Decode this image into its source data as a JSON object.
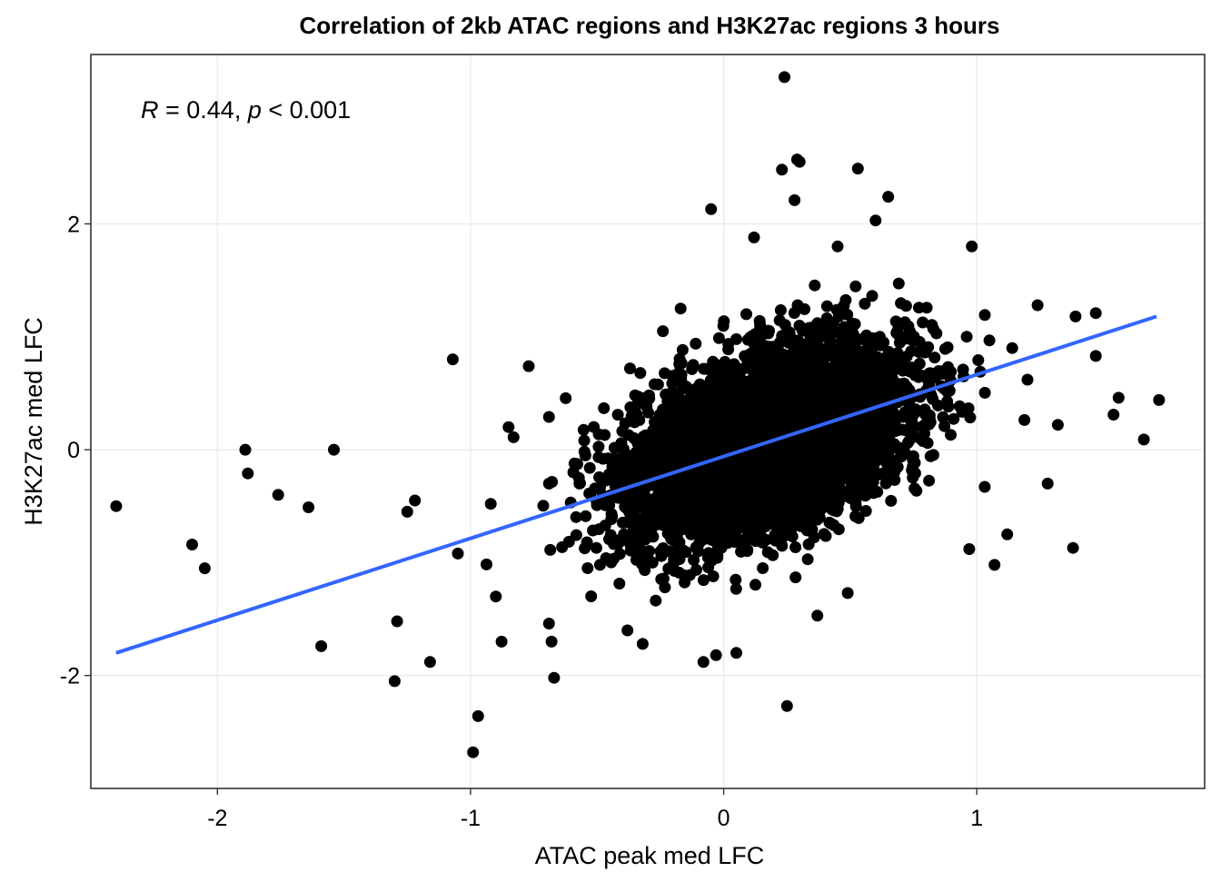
{
  "chart_data": {
    "type": "scatter",
    "title": "Correlation of 2kb ATAC regions and H3K27ac regions 3 hours",
    "xlabel": "ATAC peak med LFC",
    "ylabel": "H3K27ac med LFC",
    "xlim": [
      -2.5,
      1.9
    ],
    "ylim": [
      -3.0,
      3.5
    ],
    "x_ticks": [
      -2,
      -1,
      0,
      1
    ],
    "y_ticks": [
      -2,
      0,
      2
    ],
    "x_tick_labels": [
      "-2",
      "-1",
      "0",
      "1"
    ],
    "y_tick_labels": [
      "-2",
      "0",
      "2"
    ],
    "grid": true,
    "annotation": {
      "r_symbol": "R",
      "r_text": " = 0.44, ",
      "p_symbol": "p",
      "p_text": " < 0.001"
    },
    "point_color": "#000000",
    "fit_line": {
      "color": "#3366FF",
      "x": [
        -2.4,
        1.71
      ],
      "y": [
        -1.8,
        1.18
      ]
    },
    "outlier_points": [
      [
        -2.4,
        -0.5
      ],
      [
        -2.1,
        -0.84
      ],
      [
        -2.05,
        -1.05
      ],
      [
        -1.89,
        0.0
      ],
      [
        -1.88,
        -0.21
      ],
      [
        -1.76,
        -0.4
      ],
      [
        -1.64,
        -0.51
      ],
      [
        -1.59,
        -1.74
      ],
      [
        -1.54,
        0.0
      ],
      [
        -1.3,
        -2.05
      ],
      [
        -1.29,
        -1.52
      ],
      [
        -1.25,
        -0.55
      ],
      [
        -1.22,
        -0.45
      ],
      [
        -1.07,
        0.8
      ],
      [
        -1.16,
        -1.88
      ],
      [
        -0.99,
        -2.68
      ],
      [
        -0.97,
        -2.36
      ],
      [
        -0.85,
        0.2
      ],
      [
        -0.83,
        0.11
      ],
      [
        -0.77,
        0.74
      ],
      [
        -0.69,
        -0.3
      ],
      [
        -0.67,
        -2.02
      ],
      [
        -0.68,
        -1.7
      ],
      [
        -0.69,
        -1.54
      ],
      [
        -0.69,
        0.29
      ],
      [
        0.24,
        3.3
      ],
      [
        0.23,
        2.48
      ],
      [
        0.29,
        2.57
      ],
      [
        0.3,
        2.55
      ],
      [
        0.53,
        2.49
      ],
      [
        0.65,
        2.24
      ],
      [
        -0.05,
        2.13
      ],
      [
        0.28,
        2.21
      ],
      [
        0.6,
        2.03
      ],
      [
        0.98,
        1.8
      ],
      [
        1.24,
        1.28
      ],
      [
        1.39,
        1.18
      ],
      [
        1.47,
        1.21
      ],
      [
        1.47,
        0.83
      ],
      [
        1.56,
        0.46
      ],
      [
        1.54,
        0.31
      ],
      [
        1.66,
        0.09
      ],
      [
        1.72,
        0.44
      ],
      [
        1.38,
        -0.87
      ],
      [
        0.25,
        -2.27
      ],
      [
        0.37,
        -1.47
      ],
      [
        0.49,
        -1.27
      ],
      [
        -0.08,
        -1.88
      ],
      [
        -0.03,
        -1.82
      ],
      [
        0.05,
        -1.8
      ],
      [
        0.97,
        -0.88
      ],
      [
        1.12,
        -0.75
      ],
      [
        -0.54,
        -0.82
      ],
      [
        -0.38,
        -1.6
      ],
      [
        -0.32,
        -1.72
      ],
      [
        -0.57,
        -0.3
      ],
      [
        -0.47,
        0.13
      ],
      [
        -0.37,
        0.72
      ],
      [
        -0.24,
        1.05
      ],
      [
        -0.17,
        1.25
      ],
      [
        0.12,
        1.88
      ],
      [
        0.45,
        1.8
      ],
      [
        1.14,
        0.9
      ],
      [
        1.2,
        0.62
      ],
      [
        1.32,
        0.22
      ],
      [
        1.28,
        -0.3
      ],
      [
        1.07,
        -1.02
      ],
      [
        -1.05,
        -0.92
      ],
      [
        -0.92,
        -0.48
      ],
      [
        -0.9,
        -1.3
      ]
    ]
  }
}
